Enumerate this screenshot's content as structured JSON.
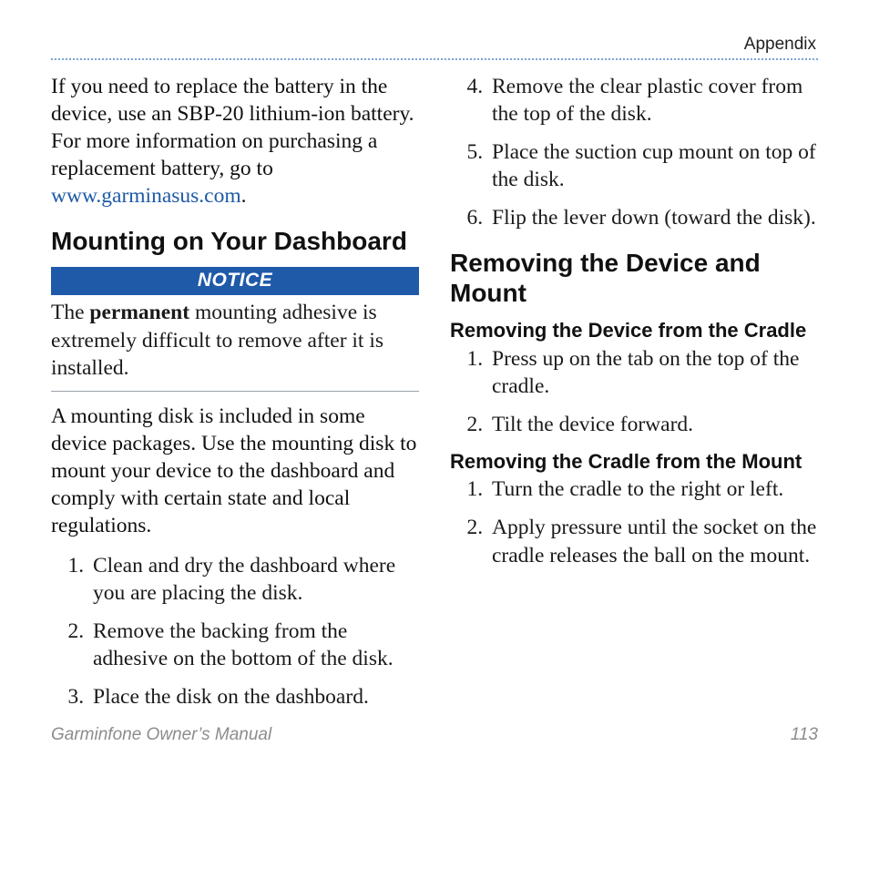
{
  "header": {
    "section": "Appendix"
  },
  "left": {
    "intro_a": "If you need to replace the battery in the device, use an SBP-20 lithium-ion battery. For more information on purchasing a replacement battery, go to ",
    "intro_link": "www.garminasus.com",
    "intro_b": ".",
    "h2": "Mounting on Your Dashboard",
    "notice_label": "NOTICE",
    "notice_a": "The ",
    "notice_strong": "permanent",
    "notice_b": " mounting adhesive is extremely difficult to remove after it is installed.",
    "para2": "A mounting disk is included in some device packages. Use the mounting disk to mount your device to the dashboard and comply with certain state and local regulations.",
    "steps": {
      "1": "Clean and dry the dashboard where you are placing the disk.",
      "2": "Remove the backing from the adhesive on the bottom of the disk.",
      "3": "Place the disk on the dashboard."
    }
  },
  "right": {
    "steps": {
      "4": "Remove the clear plastic cover from the top of the disk.",
      "5": "Place the suction cup mount on top of the disk.",
      "6": "Flip the lever down (toward the disk)."
    },
    "h2": "Removing the Device and Mount",
    "sub1": "Removing the Device from the Cradle",
    "sub1steps": {
      "1": "Press up on the tab on the top of the cradle.",
      "2": "Tilt the device forward."
    },
    "sub2": "Removing the Cradle from the Mount",
    "sub2steps": {
      "1": "Turn the cradle to the right or left.",
      "2": "Apply pressure until the socket on the cradle releases the ball on the mount."
    }
  },
  "footer": {
    "title": "Garminfone Owner’s Manual",
    "page": "113"
  },
  "colors": {
    "accent": "#1f5aa9",
    "link": "#1d5aa7",
    "rule": "#7aa3d6",
    "footer": "#8c8c8c"
  }
}
